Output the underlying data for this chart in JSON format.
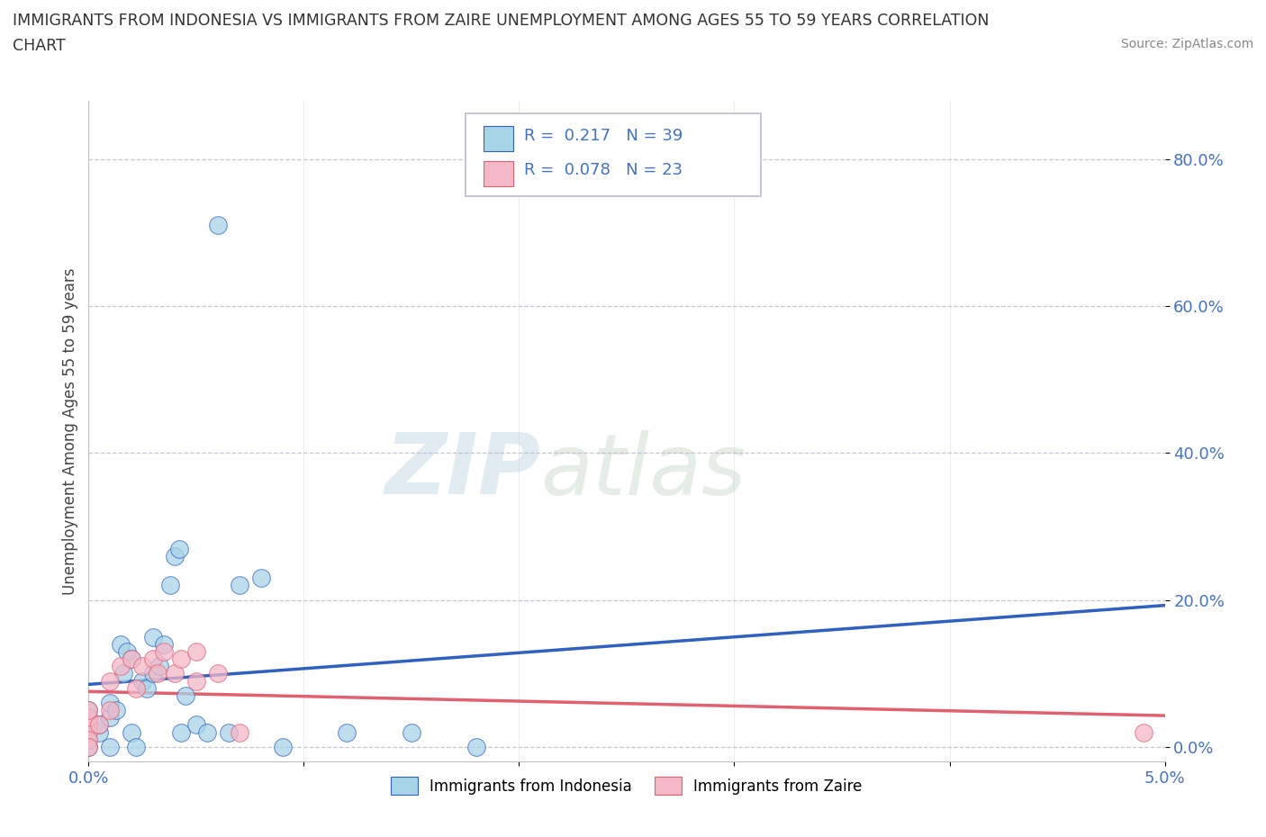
{
  "title_line1": "IMMIGRANTS FROM INDONESIA VS IMMIGRANTS FROM ZAIRE UNEMPLOYMENT AMONG AGES 55 TO 59 YEARS CORRELATION",
  "title_line2": "CHART",
  "source": "Source: ZipAtlas.com",
  "ylabel": "Unemployment Among Ages 55 to 59 years",
  "yticks_labels": [
    "0.0%",
    "20.0%",
    "40.0%",
    "60.0%",
    "80.0%"
  ],
  "ytick_vals": [
    0.0,
    0.2,
    0.4,
    0.6,
    0.8
  ],
  "xlim": [
    0.0,
    0.05
  ],
  "ylim": [
    -0.02,
    0.88
  ],
  "color_indonesia": "#a8d4e8",
  "color_zaire": "#f4b8c8",
  "trendline_color_indonesia": "#3060c0",
  "trendline_color_zaire": "#e06070",
  "watermark_zip": "ZIP",
  "watermark_atlas": "atlas",
  "indonesia_x": [
    0.0,
    0.0,
    0.0,
    0.0,
    0.0,
    0.0,
    0.0005,
    0.0005,
    0.001,
    0.001,
    0.001,
    0.0013,
    0.0015,
    0.0016,
    0.0018,
    0.002,
    0.002,
    0.0022,
    0.0025,
    0.0027,
    0.003,
    0.003,
    0.0033,
    0.0035,
    0.0038,
    0.004,
    0.0042,
    0.0043,
    0.0045,
    0.005,
    0.0055,
    0.006,
    0.0065,
    0.007,
    0.008,
    0.009,
    0.012,
    0.015,
    0.018
  ],
  "indonesia_y": [
    0.02,
    0.03,
    0.04,
    0.05,
    0.01,
    0.0,
    0.02,
    0.03,
    0.04,
    0.06,
    0.0,
    0.05,
    0.14,
    0.1,
    0.13,
    0.12,
    0.02,
    0.0,
    0.09,
    0.08,
    0.1,
    0.15,
    0.11,
    0.14,
    0.22,
    0.26,
    0.27,
    0.02,
    0.07,
    0.03,
    0.02,
    0.71,
    0.02,
    0.22,
    0.23,
    0.0,
    0.02,
    0.02,
    0.0
  ],
  "zaire_x": [
    0.0,
    0.0,
    0.0,
    0.0,
    0.0,
    0.0,
    0.0005,
    0.001,
    0.001,
    0.0015,
    0.002,
    0.0022,
    0.0025,
    0.003,
    0.0032,
    0.0035,
    0.004,
    0.0043,
    0.005,
    0.005,
    0.006,
    0.007,
    0.049
  ],
  "zaire_y": [
    0.03,
    0.02,
    0.04,
    0.05,
    0.01,
    0.0,
    0.03,
    0.05,
    0.09,
    0.11,
    0.12,
    0.08,
    0.11,
    0.12,
    0.1,
    0.13,
    0.1,
    0.12,
    0.13,
    0.09,
    0.1,
    0.02,
    0.02
  ]
}
